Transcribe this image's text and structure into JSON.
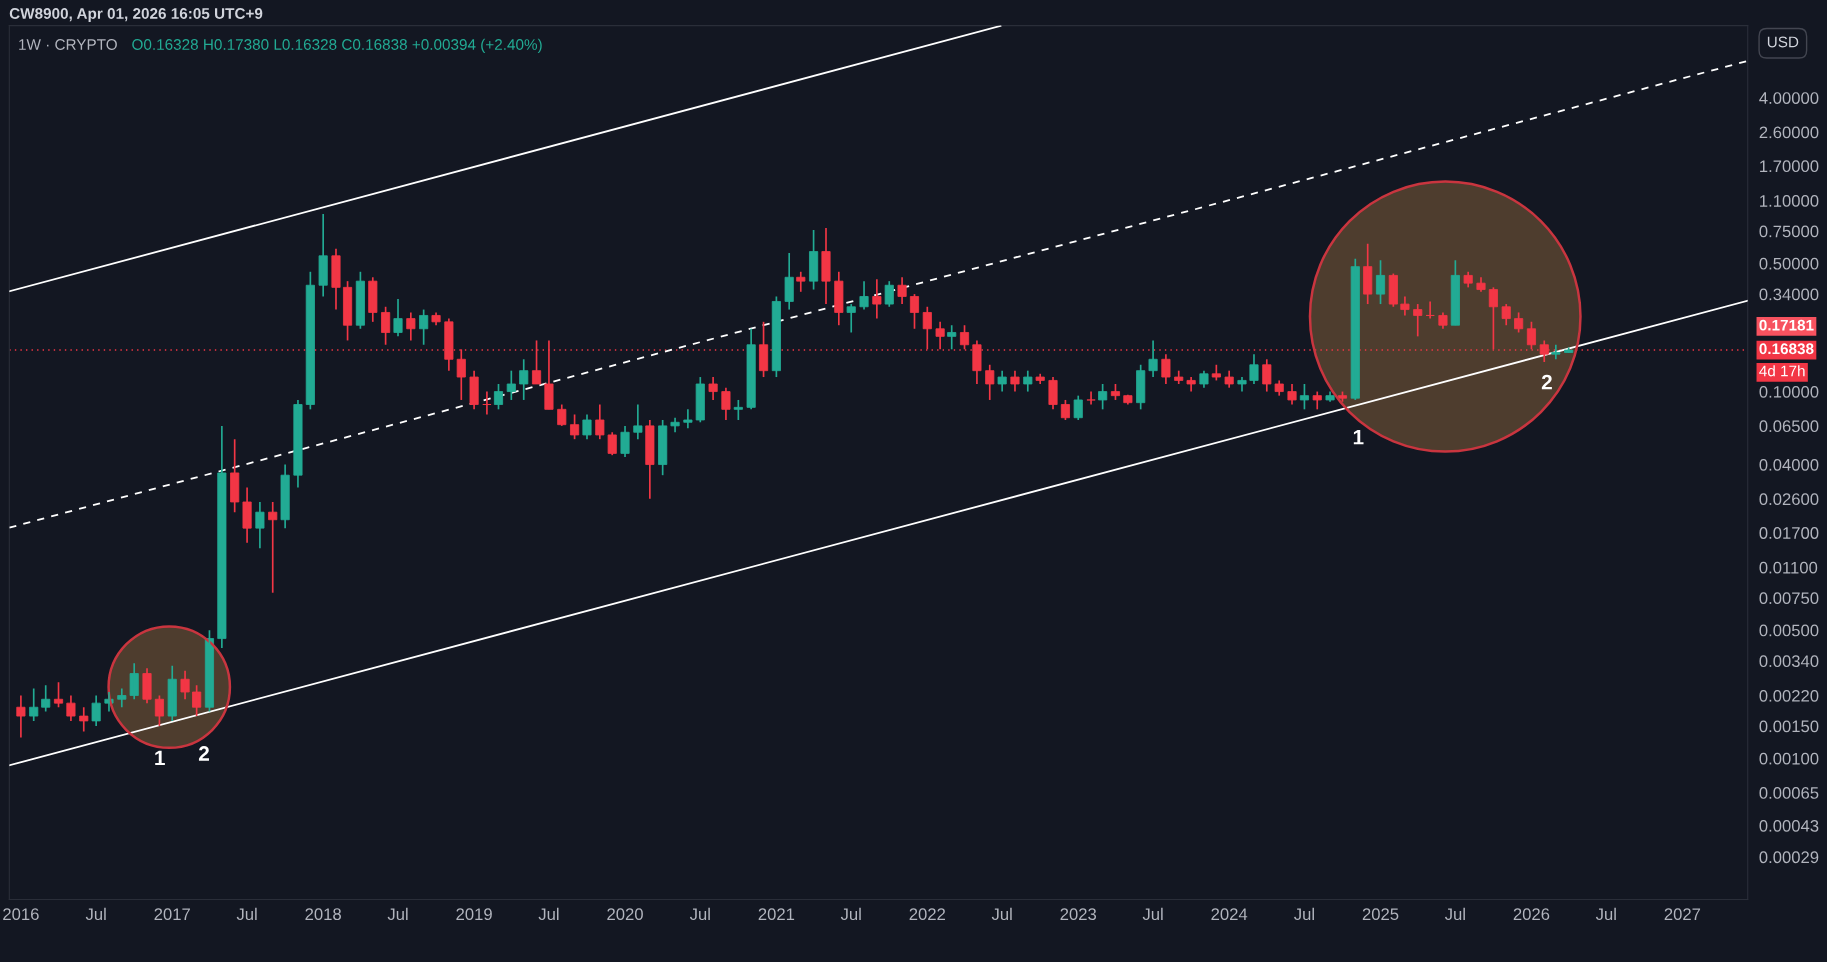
{
  "chart_data": {
    "type": "candlestick",
    "title": "1W · CRYPTO",
    "subtitle": "O0.16328 H0.17380 L0.16328 C0.16838 +0.00394 (+2.40%)",
    "annotations": [
      "CW8900, Apr 01, 2026 16:05 UTC+9",
      "USD",
      "0.17181",
      "4d 17h",
      "1",
      "2",
      "1",
      "2"
    ],
    "log": true,
    "grid": false,
    "xlim": [
      "2015-12-04",
      "2027-06-08"
    ],
    "xticks": [
      {
        "value": "2016-01-01",
        "label": "2016"
      },
      {
        "value": "2016-07-01",
        "label": "Jul"
      },
      {
        "value": "2017-01-01",
        "label": "2017"
      },
      {
        "value": "2017-07-01",
        "label": "Jul"
      },
      {
        "value": "2018-01-01",
        "label": "2018"
      },
      {
        "value": "2018-07-01",
        "label": "Jul"
      },
      {
        "value": "2019-01-01",
        "label": "2019"
      },
      {
        "value": "2019-07-01",
        "label": "Jul"
      },
      {
        "value": "2020-01-01",
        "label": "2020"
      },
      {
        "value": "2020-07-01",
        "label": "Jul"
      },
      {
        "value": "2021-01-01",
        "label": "2021"
      },
      {
        "value": "2021-07-01",
        "label": "Jul"
      },
      {
        "value": "2022-01-01",
        "label": "2022"
      },
      {
        "value": "2022-07-01",
        "label": "Jul"
      },
      {
        "value": "2023-01-01",
        "label": "2023"
      },
      {
        "value": "2023-07-01",
        "label": "Jul"
      },
      {
        "value": "2024-01-01",
        "label": "2024"
      },
      {
        "value": "2024-07-01",
        "label": "Jul"
      },
      {
        "value": "2025-01-01",
        "label": "2025"
      },
      {
        "value": "2025-07-01",
        "label": "Jul"
      },
      {
        "value": "2026-01-01",
        "label": "2026"
      },
      {
        "value": "2026-07-01",
        "label": "Jul"
      },
      {
        "value": "2027-01-01",
        "label": "2027"
      }
    ],
    "ylim": [
      0.00017,
      9.9
    ],
    "yticks": [
      {
        "value": 0.00029,
        "label": "0.00029"
      },
      {
        "value": 0.00043,
        "label": "0.00043"
      },
      {
        "value": 0.00065,
        "label": "0.00065"
      },
      {
        "value": 0.001,
        "label": "0.00100"
      },
      {
        "value": 0.0015,
        "label": "0.00150"
      },
      {
        "value": 0.0022,
        "label": "0.00220"
      },
      {
        "value": 0.0034,
        "label": "0.00340"
      },
      {
        "value": 0.005,
        "label": "0.00500"
      },
      {
        "value": 0.0075,
        "label": "0.00750"
      },
      {
        "value": 0.011,
        "label": "0.01100"
      },
      {
        "value": 0.017,
        "label": "0.01700"
      },
      {
        "value": 0.026,
        "label": "0.02600"
      },
      {
        "value": 0.04,
        "label": "0.04000"
      },
      {
        "value": 0.065,
        "label": "0.06500"
      },
      {
        "value": 0.1,
        "label": "0.10000"
      },
      {
        "value": 0.34,
        "label": "0.34000"
      },
      {
        "value": 0.5,
        "label": "0.50000"
      },
      {
        "value": 0.75,
        "label": "0.75000"
      },
      {
        "value": 1.1,
        "label": "1.10000"
      },
      {
        "value": 1.7,
        "label": "1.70000"
      },
      {
        "value": 2.6,
        "label": "2.60000"
      },
      {
        "value": 4.0,
        "label": "4.00000"
      }
    ],
    "ref_lines": [
      {
        "axis": "y",
        "value": 0.16838,
        "label": "0.16838",
        "color": "#f23645",
        "line_style": "dotted"
      }
    ],
    "series": [
      {
        "type": "candlestick",
        "x": [
          "2016-01",
          "2016-02",
          "2016-03",
          "2016-04",
          "2016-05",
          "2016-06",
          "2016-07",
          "2016-08",
          "2016-09",
          "2016-10",
          "2016-11",
          "2016-12",
          "2017-01",
          "2017-02",
          "2017-03",
          "2017-04",
          "2017-05",
          "2017-06",
          "2017-07",
          "2017-08",
          "2017-09",
          "2017-10",
          "2017-11",
          "2017-12",
          "2018-01",
          "2018-02",
          "2018-03",
          "2018-04",
          "2018-05",
          "2018-06",
          "2018-07",
          "2018-08",
          "2018-09",
          "2018-10",
          "2018-11",
          "2018-12",
          "2019-01",
          "2019-02",
          "2019-03",
          "2019-04",
          "2019-05",
          "2019-06",
          "2019-07",
          "2019-08",
          "2019-09",
          "2019-10",
          "2019-11",
          "2019-12",
          "2020-01",
          "2020-02",
          "2020-03",
          "2020-04",
          "2020-05",
          "2020-06",
          "2020-07",
          "2020-08",
          "2020-09",
          "2020-10",
          "2020-11",
          "2020-12",
          "2021-01",
          "2021-02",
          "2021-03",
          "2021-04",
          "2021-05",
          "2021-06",
          "2021-07",
          "2021-08",
          "2021-09",
          "2021-10",
          "2021-11",
          "2021-12",
          "2022-01",
          "2022-02",
          "2022-03",
          "2022-04",
          "2022-05",
          "2022-06",
          "2022-07",
          "2022-08",
          "2022-09",
          "2022-10",
          "2022-11",
          "2022-12",
          "2023-01",
          "2023-02",
          "2023-03",
          "2023-04",
          "2023-05",
          "2023-06",
          "2023-07",
          "2023-08",
          "2023-09",
          "2023-10",
          "2023-11",
          "2023-12",
          "2024-01",
          "2024-02",
          "2024-03",
          "2024-04",
          "2024-05",
          "2024-06",
          "2024-07",
          "2024-08",
          "2024-09",
          "2024-10",
          "2024-11",
          "2024-12",
          "2025-01",
          "2025-02",
          "2025-03",
          "2025-04",
          "2025-05",
          "2025-06",
          "2025-07",
          "2025-08",
          "2025-09",
          "2025-10",
          "2025-11",
          "2025-12",
          "2026-01",
          "2026-02",
          "2026-03",
          "2026-04"
        ],
        "ohlc": [
          [
            0.0019,
            0.0022,
            0.0013,
            0.0017
          ],
          [
            0.0017,
            0.0024,
            0.0016,
            0.0019
          ],
          [
            0.0019,
            0.0025,
            0.0018,
            0.0021
          ],
          [
            0.0021,
            0.0026,
            0.0019,
            0.002
          ],
          [
            0.002,
            0.0022,
            0.0016,
            0.0017
          ],
          [
            0.0017,
            0.0019,
            0.0014,
            0.0016
          ],
          [
            0.0016,
            0.0022,
            0.0015,
            0.002
          ],
          [
            0.002,
            0.0023,
            0.0018,
            0.0021
          ],
          [
            0.0021,
            0.0024,
            0.0019,
            0.0022
          ],
          [
            0.0022,
            0.0033,
            0.0021,
            0.0029
          ],
          [
            0.0029,
            0.0031,
            0.002,
            0.0021
          ],
          [
            0.0021,
            0.0022,
            0.0015,
            0.0017
          ],
          [
            0.0017,
            0.0032,
            0.0016,
            0.0027
          ],
          [
            0.0027,
            0.003,
            0.0021,
            0.0023
          ],
          [
            0.0023,
            0.0025,
            0.0017,
            0.0019
          ],
          [
            0.0019,
            0.005,
            0.0018,
            0.0045
          ],
          [
            0.0045,
            0.065,
            0.004,
            0.036
          ],
          [
            0.036,
            0.055,
            0.022,
            0.025
          ],
          [
            0.025,
            0.03,
            0.015,
            0.018
          ],
          [
            0.018,
            0.025,
            0.014,
            0.022
          ],
          [
            0.022,
            0.025,
            0.008,
            0.02
          ],
          [
            0.02,
            0.04,
            0.018,
            0.035
          ],
          [
            0.035,
            0.09,
            0.03,
            0.085
          ],
          [
            0.085,
            0.45,
            0.08,
            0.38
          ],
          [
            0.38,
            0.93,
            0.33,
            0.55
          ],
          [
            0.55,
            0.6,
            0.28,
            0.37
          ],
          [
            0.37,
            0.4,
            0.19,
            0.23
          ],
          [
            0.23,
            0.45,
            0.22,
            0.4
          ],
          [
            0.4,
            0.42,
            0.24,
            0.27
          ],
          [
            0.27,
            0.29,
            0.18,
            0.21
          ],
          [
            0.21,
            0.32,
            0.2,
            0.25
          ],
          [
            0.25,
            0.27,
            0.19,
            0.22
          ],
          [
            0.22,
            0.28,
            0.18,
            0.26
          ],
          [
            0.26,
            0.27,
            0.23,
            0.24
          ],
          [
            0.24,
            0.25,
            0.13,
            0.15
          ],
          [
            0.15,
            0.17,
            0.09,
            0.12
          ],
          [
            0.12,
            0.13,
            0.08,
            0.085
          ],
          [
            0.085,
            0.1,
            0.075,
            0.085
          ],
          [
            0.085,
            0.11,
            0.08,
            0.1
          ],
          [
            0.1,
            0.13,
            0.09,
            0.11
          ],
          [
            0.11,
            0.15,
            0.09,
            0.13
          ],
          [
            0.13,
            0.19,
            0.11,
            0.11
          ],
          [
            0.11,
            0.19,
            0.08,
            0.08
          ],
          [
            0.08,
            0.085,
            0.065,
            0.066
          ],
          [
            0.066,
            0.075,
            0.055,
            0.058
          ],
          [
            0.058,
            0.075,
            0.055,
            0.07
          ],
          [
            0.07,
            0.085,
            0.055,
            0.058
          ],
          [
            0.058,
            0.06,
            0.045,
            0.046
          ],
          [
            0.046,
            0.065,
            0.044,
            0.06
          ],
          [
            0.06,
            0.085,
            0.055,
            0.065
          ],
          [
            0.065,
            0.07,
            0.026,
            0.04
          ],
          [
            0.04,
            0.07,
            0.035,
            0.065
          ],
          [
            0.065,
            0.072,
            0.06,
            0.068
          ],
          [
            0.068,
            0.08,
            0.063,
            0.07
          ],
          [
            0.07,
            0.12,
            0.068,
            0.11
          ],
          [
            0.11,
            0.12,
            0.09,
            0.1
          ],
          [
            0.1,
            0.105,
            0.07,
            0.08
          ],
          [
            0.08,
            0.09,
            0.07,
            0.082
          ],
          [
            0.082,
            0.22,
            0.08,
            0.18
          ],
          [
            0.18,
            0.24,
            0.12,
            0.13
          ],
          [
            0.13,
            0.33,
            0.12,
            0.31
          ],
          [
            0.31,
            0.57,
            0.28,
            0.42
          ],
          [
            0.42,
            0.45,
            0.35,
            0.4
          ],
          [
            0.4,
            0.76,
            0.36,
            0.58
          ],
          [
            0.58,
            0.78,
            0.3,
            0.4
          ],
          [
            0.4,
            0.45,
            0.23,
            0.27
          ],
          [
            0.27,
            0.3,
            0.21,
            0.29
          ],
          [
            0.29,
            0.4,
            0.28,
            0.33
          ],
          [
            0.33,
            0.41,
            0.25,
            0.3
          ],
          [
            0.3,
            0.4,
            0.29,
            0.38
          ],
          [
            0.38,
            0.42,
            0.3,
            0.33
          ],
          [
            0.33,
            0.34,
            0.22,
            0.27
          ],
          [
            0.27,
            0.29,
            0.17,
            0.22
          ],
          [
            0.22,
            0.24,
            0.17,
            0.2
          ],
          [
            0.2,
            0.23,
            0.17,
            0.21
          ],
          [
            0.21,
            0.23,
            0.17,
            0.18
          ],
          [
            0.18,
            0.19,
            0.11,
            0.13
          ],
          [
            0.13,
            0.14,
            0.09,
            0.11
          ],
          [
            0.11,
            0.13,
            0.1,
            0.12
          ],
          [
            0.12,
            0.13,
            0.1,
            0.11
          ],
          [
            0.11,
            0.13,
            0.1,
            0.12
          ],
          [
            0.12,
            0.125,
            0.11,
            0.115
          ],
          [
            0.115,
            0.12,
            0.08,
            0.085
          ],
          [
            0.085,
            0.09,
            0.07,
            0.072
          ],
          [
            0.072,
            0.095,
            0.07,
            0.09
          ],
          [
            0.09,
            0.1,
            0.085,
            0.09
          ],
          [
            0.09,
            0.11,
            0.08,
            0.1
          ],
          [
            0.1,
            0.11,
            0.09,
            0.095
          ],
          [
            0.095,
            0.096,
            0.085,
            0.087
          ],
          [
            0.087,
            0.14,
            0.08,
            0.13
          ],
          [
            0.13,
            0.19,
            0.12,
            0.15
          ],
          [
            0.15,
            0.16,
            0.11,
            0.12
          ],
          [
            0.12,
            0.13,
            0.11,
            0.115
          ],
          [
            0.115,
            0.12,
            0.1,
            0.11
          ],
          [
            0.11,
            0.13,
            0.105,
            0.125
          ],
          [
            0.125,
            0.14,
            0.115,
            0.12
          ],
          [
            0.12,
            0.13,
            0.105,
            0.11
          ],
          [
            0.11,
            0.12,
            0.1,
            0.115
          ],
          [
            0.115,
            0.16,
            0.11,
            0.14
          ],
          [
            0.14,
            0.15,
            0.1,
            0.11
          ],
          [
            0.11,
            0.115,
            0.095,
            0.1
          ],
          [
            0.1,
            0.11,
            0.085,
            0.09
          ],
          [
            0.09,
            0.11,
            0.08,
            0.095
          ],
          [
            0.095,
            0.1,
            0.08,
            0.09
          ],
          [
            0.09,
            0.1,
            0.088,
            0.095
          ],
          [
            0.095,
            0.1,
            0.088,
            0.092
          ],
          [
            0.092,
            0.53,
            0.09,
            0.48
          ],
          [
            0.48,
            0.64,
            0.3,
            0.34
          ],
          [
            0.34,
            0.52,
            0.3,
            0.43
          ],
          [
            0.43,
            0.44,
            0.29,
            0.3
          ],
          [
            0.3,
            0.33,
            0.26,
            0.28
          ],
          [
            0.28,
            0.3,
            0.2,
            0.26
          ],
          [
            0.26,
            0.31,
            0.25,
            0.26
          ],
          [
            0.26,
            0.27,
            0.22,
            0.23
          ],
          [
            0.23,
            0.52,
            0.23,
            0.43
          ],
          [
            0.43,
            0.45,
            0.37,
            0.39
          ],
          [
            0.39,
            0.42,
            0.35,
            0.36
          ],
          [
            0.36,
            0.37,
            0.17,
            0.29
          ],
          [
            0.29,
            0.3,
            0.23,
            0.25
          ],
          [
            0.25,
            0.27,
            0.21,
            0.22
          ],
          [
            0.22,
            0.24,
            0.17,
            0.18
          ],
          [
            0.18,
            0.19,
            0.145,
            0.16
          ],
          [
            0.16,
            0.18,
            0.15,
            0.16328
          ],
          [
            0.16328,
            0.1738,
            0.16328,
            0.16838
          ]
        ],
        "colors": [
          "#f23645",
          "#22ab94",
          "#22ab94",
          "#f23645",
          "#f23645",
          "#f23645",
          "#22ab94",
          "#22ab94",
          "#22ab94",
          "#22ab94",
          "#f23645",
          "#f23645",
          "#22ab94",
          "#f23645",
          "#f23645",
          "#22ab94",
          "#22ab94",
          "#f23645",
          "#f23645",
          "#22ab94",
          "#f23645",
          "#22ab94",
          "#22ab94",
          "#22ab94",
          "#22ab94",
          "#f23645",
          "#f23645",
          "#22ab94",
          "#f23645",
          "#f23645",
          "#22ab94",
          "#f23645",
          "#22ab94",
          "#f23645",
          "#f23645",
          "#f23645",
          "#f23645",
          "#f23645",
          "#22ab94",
          "#22ab94",
          "#22ab94",
          "#f23645",
          "#f23645",
          "#f23645",
          "#f23645",
          "#22ab94",
          "#f23645",
          "#f23645",
          "#22ab94",
          "#22ab94",
          "#f23645",
          "#22ab94",
          "#22ab94",
          "#22ab94",
          "#22ab94",
          "#f23645",
          "#f23645",
          "#22ab94",
          "#22ab94",
          "#f23645",
          "#22ab94",
          "#22ab94",
          "#f23645",
          "#22ab94",
          "#f23645",
          "#f23645",
          "#22ab94",
          "#22ab94",
          "#f23645",
          "#22ab94",
          "#f23645",
          "#f23645",
          "#f23645",
          "#f23645",
          "#22ab94",
          "#f23645",
          "#f23645",
          "#f23645",
          "#22ab94",
          "#f23645",
          "#22ab94",
          "#f23645",
          "#f23645",
          "#f23645",
          "#22ab94",
          "#f23645",
          "#22ab94",
          "#f23645",
          "#f23645",
          "#22ab94",
          "#22ab94",
          "#f23645",
          "#f23645",
          "#f23645",
          "#22ab94",
          "#f23645",
          "#f23645",
          "#22ab94",
          "#22ab94",
          "#f23645",
          "#f23645",
          "#f23645",
          "#22ab94",
          "#f23645",
          "#22ab94",
          "#f23645",
          "#22ab94",
          "#f23645",
          "#22ab94",
          "#f23645",
          "#f23645",
          "#f23645",
          "#f23645",
          "#f23645",
          "#22ab94",
          "#f23645",
          "#f23645",
          "#f23645",
          "#f23645",
          "#f23645",
          "#f23645",
          "#f23645",
          "#22ab94",
          "#22ab94"
        ]
      },
      {
        "type": "line",
        "x": [
          "2015-12-04",
          "2022-06-27"
        ],
        "values": [
          0.352,
          9.86
        ],
        "color": "#ffffff",
        "line_style": "solid"
      },
      {
        "type": "line",
        "x": [
          "2015-12-04",
          "2027-06-08"
        ],
        "values": [
          0.0181,
          6.36
        ],
        "color": "#ffffff",
        "line_style": "dashed"
      },
      {
        "type": "line",
        "x": [
          "2015-12-04",
          "2027-06-08"
        ],
        "values": [
          0.000916,
          0.313
        ],
        "color": "#ffffff",
        "line_style": "solid"
      }
    ]
  }
}
